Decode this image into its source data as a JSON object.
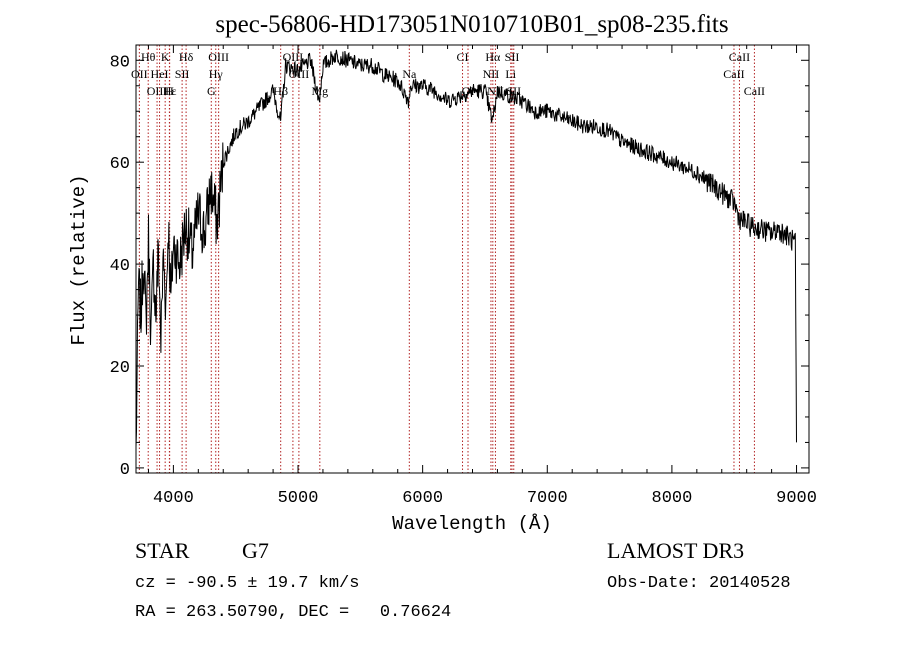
{
  "chart_data": {
    "type": "line",
    "title": "spec-56806-HD173051N010710B01_sp08-235.fits",
    "xlabel": "Wavelength (Å)",
    "ylabel": "Flux (relative)",
    "xlim": [
      3700,
      9100
    ],
    "ylim": [
      -1,
      83
    ],
    "xticks": [
      4000,
      5000,
      6000,
      7000,
      8000,
      9000
    ],
    "yticks": [
      0,
      20,
      40,
      60,
      80
    ],
    "grid": false,
    "series": [
      {
        "name": "flux",
        "x": [
          3700,
          3720,
          3740,
          3760,
          3780,
          3800,
          3820,
          3840,
          3860,
          3880,
          3900,
          3920,
          3940,
          3960,
          3980,
          4000,
          4050,
          4100,
          4150,
          4200,
          4250,
          4300,
          4350,
          4400,
          4500,
          4600,
          4700,
          4800,
          4860,
          4900,
          5000,
          5100,
          5170,
          5200,
          5300,
          5400,
          5500,
          5600,
          5700,
          5800,
          5890,
          5900,
          6000,
          6100,
          6200,
          6300,
          6400,
          6500,
          6560,
          6600,
          6700,
          6800,
          6900,
          7000,
          7100,
          7200,
          7300,
          7400,
          7500,
          7600,
          7700,
          7800,
          7900,
          8000,
          8100,
          8200,
          8300,
          8400,
          8500,
          8540,
          8600,
          8660,
          8700,
          8800,
          8850,
          8900,
          8950,
          8990,
          9000
        ],
        "y": [
          3,
          36,
          30,
          42,
          28,
          45,
          26,
          40,
          30,
          43,
          25,
          42,
          32,
          48,
          33,
          44,
          40,
          48,
          42,
          50,
          46,
          55,
          48,
          60,
          66,
          68,
          71,
          74,
          68,
          79,
          78,
          80,
          72,
          79,
          81,
          80,
          79,
          79,
          77,
          76,
          72,
          75,
          75,
          74,
          72,
          73,
          74,
          74,
          68,
          74,
          73,
          72,
          70,
          70,
          69,
          68,
          67,
          67,
          66,
          64,
          63,
          62,
          61,
          60,
          59,
          58,
          56,
          54,
          52,
          49,
          48,
          47,
          47,
          46,
          47,
          46,
          45,
          44,
          5
        ]
      }
    ]
  },
  "spectral_lines": [
    {
      "label": "Hθ",
      "wave": 3798,
      "row": 1
    },
    {
      "label": "OII",
      "wave": 3727,
      "row": 2
    },
    {
      "label": "OIII",
      "wave": 3869,
      "row": 3
    },
    {
      "label": "K",
      "wave": 3934,
      "row": 1
    },
    {
      "label": "H",
      "wave": 3968,
      "row": 3
    },
    {
      "label": "HeI",
      "wave": 3889,
      "row": 2
    },
    {
      "label": "SII",
      "wave": 4070,
      "row": 2
    },
    {
      "label": "Hε",
      "wave": 3970,
      "row": 3
    },
    {
      "label": "Hδ",
      "wave": 4102,
      "row": 1
    },
    {
      "label": "OIII",
      "wave": 4363,
      "row": 1
    },
    {
      "label": "Hγ",
      "wave": 4340,
      "row": 2
    },
    {
      "label": "G",
      "wave": 4304,
      "row": 3
    },
    {
      "label": "OIII",
      "wave": 4959,
      "row": 1
    },
    {
      "label": "OIII",
      "wave": 5007,
      "row": 2
    },
    {
      "label": "Hβ",
      "wave": 4861,
      "row": 3
    },
    {
      "label": "Mg",
      "wave": 5175,
      "row": 3
    },
    {
      "label": "Na",
      "wave": 5893,
      "row": 2
    },
    {
      "label": "CI",
      "wave": 6320,
      "row": 1
    },
    {
      "label": "OI",
      "wave": 6364,
      "row": 3
    },
    {
      "label": "Hα",
      "wave": 6563,
      "row": 1
    },
    {
      "label": "NII",
      "wave": 6548,
      "row": 2
    },
    {
      "label": "NII",
      "wave": 6584,
      "row": 3
    },
    {
      "label": "SII",
      "wave": 6717,
      "row": 1
    },
    {
      "label": "Li",
      "wave": 6707,
      "row": 2
    },
    {
      "label": "SII",
      "wave": 6731,
      "row": 3
    },
    {
      "label": "CaII",
      "wave": 8542,
      "row": 1
    },
    {
      "label": "CaII",
      "wave": 8498,
      "row": 2
    },
    {
      "label": "CaII",
      "wave": 8662,
      "row": 3
    }
  ],
  "info": {
    "object_class": "STAR",
    "subclass": "G7",
    "survey": "LAMOST DR3",
    "cz": "cz = -90.5 ± 19.7 km/s",
    "obs_date": "Obs-Date: 20140528",
    "coords": "RA = 263.50790, DEC =   0.76624"
  }
}
